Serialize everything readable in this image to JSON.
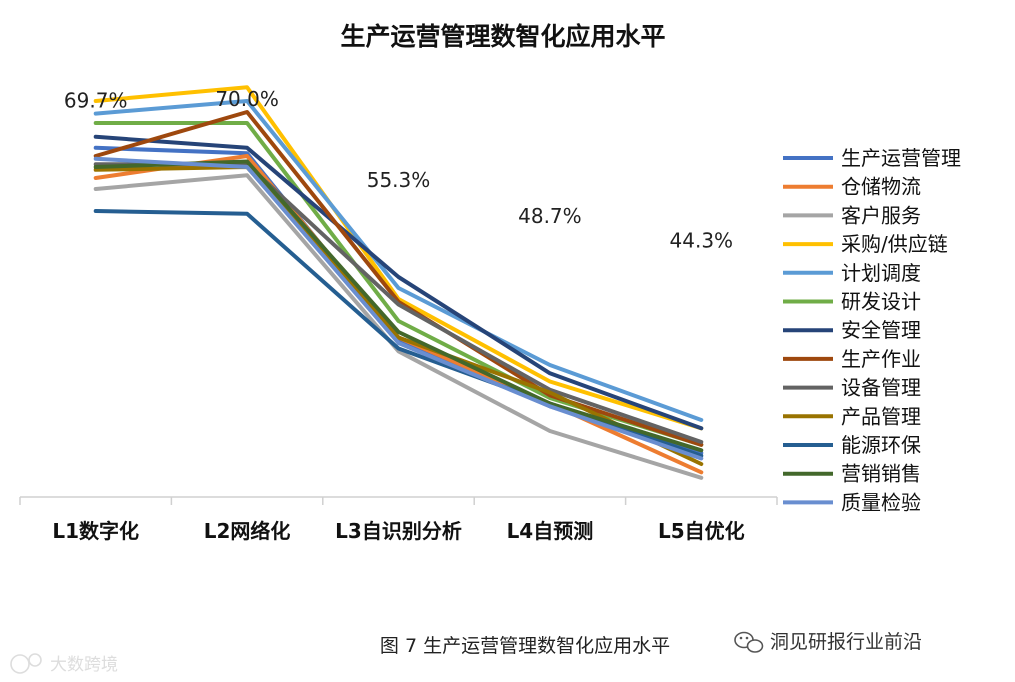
{
  "chart_data": {
    "type": "line",
    "title": "生产运营管理数智化应用水平",
    "categories": [
      "L1数字化",
      "L2网络化",
      "L3自识别分析",
      "L4自预测",
      "L5自优化"
    ],
    "ylim": [
      0,
      80
    ],
    "grid": false,
    "legend_position": "right",
    "series": [
      {
        "name": "生产运营管理",
        "color": "#4472C4",
        "values": [
          63.5,
          62.5,
          28.5,
          16.5,
          8.0
        ]
      },
      {
        "name": "仓储物流",
        "color": "#ED7D31",
        "values": [
          58.0,
          62.0,
          29.0,
          17.0,
          4.5
        ]
      },
      {
        "name": "客户服务",
        "color": "#A5A5A5",
        "values": [
          56.0,
          58.5,
          26.5,
          12.0,
          3.5
        ]
      },
      {
        "name": "采购/供应链",
        "color": "#FFC000",
        "values": [
          72.0,
          74.5,
          36.0,
          21.0,
          12.5
        ]
      },
      {
        "name": "计划调度",
        "color": "#5B9BD5",
        "values": [
          69.7,
          72.0,
          38.0,
          24.0,
          14.0
        ]
      },
      {
        "name": "研发设计",
        "color": "#70AD47",
        "values": [
          68.0,
          68.0,
          32.0,
          18.0,
          9.5
        ]
      },
      {
        "name": "安全管理",
        "color": "#264478",
        "values": [
          65.5,
          63.5,
          40.0,
          22.5,
          12.5
        ]
      },
      {
        "name": "生产作业",
        "color": "#9E480E",
        "values": [
          62.0,
          70.0,
          35.5,
          18.5,
          9.5
        ]
      },
      {
        "name": "设备管理",
        "color": "#636363",
        "values": [
          60.5,
          60.5,
          35.0,
          19.5,
          10.0
        ]
      },
      {
        "name": "产品管理",
        "color": "#997300",
        "values": [
          59.5,
          60.0,
          29.0,
          19.0,
          6.0
        ]
      },
      {
        "name": "能源环保",
        "color": "#255E91",
        "values": [
          52.0,
          51.5,
          27.0,
          17.0,
          7.5
        ]
      },
      {
        "name": "营销销售",
        "color": "#43682B",
        "values": [
          60.0,
          61.0,
          30.0,
          17.0,
          8.5
        ]
      },
      {
        "name": "质量检验",
        "color": "#698ED0",
        "values": [
          61.5,
          60.0,
          28.0,
          16.5,
          7.0
        ]
      }
    ],
    "annotations": [
      {
        "text": "69.7%",
        "category": "L1数字化",
        "value": 69.7
      },
      {
        "text": "70.0%",
        "category": "L2网络化",
        "value": 70.0
      },
      {
        "text": "55.3%",
        "category": "L3自识别分析",
        "value": 55.3
      },
      {
        "text": "48.7%",
        "category": "L4自预测",
        "value": 48.7
      },
      {
        "text": "44.3%",
        "category": "L5自优化",
        "value": 44.3
      }
    ]
  },
  "caption": "图 7 生产运营管理数智化应用水平",
  "watermark_right": "洞见研报行业前沿",
  "watermark_left": "大数跨境"
}
